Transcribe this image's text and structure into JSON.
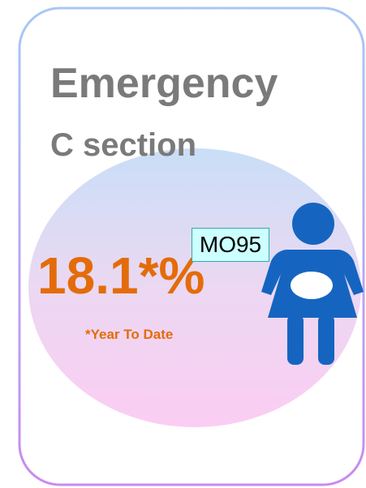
{
  "title": "Emergency",
  "subtitle": "C section",
  "value": "18.1*%",
  "tag": "MO95",
  "footnote": "*Year To Date"
}
